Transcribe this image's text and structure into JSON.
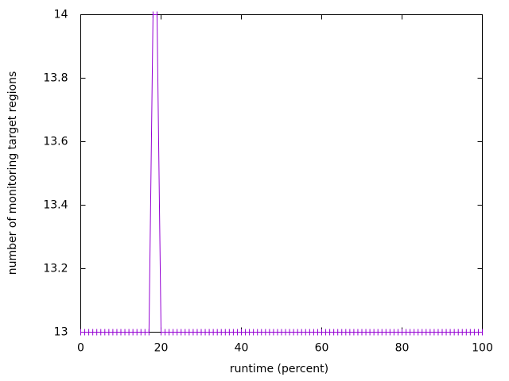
{
  "chart_data": {
    "type": "line",
    "xlabel": "runtime (percent)",
    "ylabel": "number of monitoring target regions",
    "x": [
      0,
      1,
      2,
      3,
      4,
      5,
      6,
      7,
      8,
      9,
      10,
      11,
      12,
      13,
      14,
      15,
      16,
      17,
      18,
      19,
      20,
      21,
      22,
      23,
      24,
      25,
      26,
      27,
      28,
      29,
      30,
      31,
      32,
      33,
      34,
      35,
      36,
      37,
      38,
      39,
      40,
      41,
      42,
      43,
      44,
      45,
      46,
      47,
      48,
      49,
      50,
      51,
      52,
      53,
      54,
      55,
      56,
      57,
      58,
      59,
      60,
      61,
      62,
      63,
      64,
      65,
      66,
      67,
      68,
      69,
      70,
      71,
      72,
      73,
      74,
      75,
      76,
      77,
      78,
      79,
      80,
      81,
      82,
      83,
      84,
      85,
      86,
      87,
      88,
      89,
      90,
      91,
      92,
      93,
      94,
      95,
      96,
      97,
      98,
      99,
      100
    ],
    "series": [
      {
        "color": "#9400d3",
        "values": [
          13,
          13,
          13,
          13,
          13,
          13,
          13,
          13,
          13,
          13,
          13,
          13,
          13,
          13,
          13,
          13,
          13,
          13,
          14,
          14,
          13,
          13,
          13,
          13,
          13,
          13,
          13,
          13,
          13,
          13,
          13,
          13,
          13,
          13,
          13,
          13,
          13,
          13,
          13,
          13,
          13,
          13,
          13,
          13,
          13,
          13,
          13,
          13,
          13,
          13,
          13,
          13,
          13,
          13,
          13,
          13,
          13,
          13,
          13,
          13,
          13,
          13,
          13,
          13,
          13,
          13,
          13,
          13,
          13,
          13,
          13,
          13,
          13,
          13,
          13,
          13,
          13,
          13,
          13,
          13,
          13,
          13,
          13,
          13,
          13,
          13,
          13,
          13,
          13,
          13,
          13,
          13,
          13,
          13,
          13,
          13,
          13,
          13,
          13,
          13,
          13
        ]
      }
    ],
    "xlim": [
      0,
      100
    ],
    "xticks": [
      0,
      20,
      40,
      60,
      80,
      100
    ],
    "ylim": [
      13,
      14
    ],
    "yticks": [
      13,
      13.2,
      13.4,
      13.6,
      13.8,
      14
    ]
  }
}
